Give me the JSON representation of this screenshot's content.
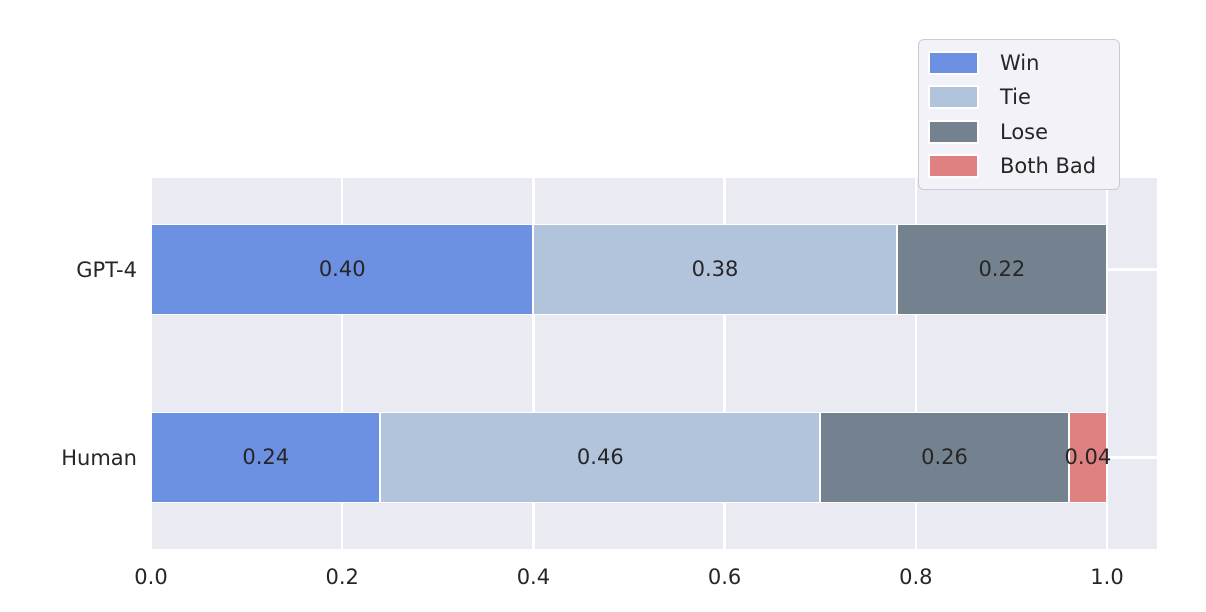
{
  "chart_data": {
    "type": "bar",
    "orientation": "horizontal",
    "stacked": true,
    "categories": [
      "GPT-4",
      "Human"
    ],
    "series": [
      {
        "name": "Win",
        "color": "#6c90e2",
        "values": [
          0.4,
          0.24
        ],
        "labels": [
          "0.40",
          "0.24"
        ]
      },
      {
        "name": "Tie",
        "color": "#b2c3dc",
        "values": [
          0.38,
          0.46
        ],
        "labels": [
          "0.38",
          "0.46"
        ]
      },
      {
        "name": "Lose",
        "color": "#74818e",
        "values": [
          0.22,
          0.26
        ],
        "labels": [
          "0.22",
          "0.26"
        ]
      },
      {
        "name": "Both Bad",
        "color": "#df8181",
        "values": [
          0.0,
          0.04
        ],
        "labels": [
          "",
          "0.04"
        ]
      }
    ],
    "xticks": [
      {
        "value": 0.0,
        "label": "0.0"
      },
      {
        "value": 0.2,
        "label": "0.2"
      },
      {
        "value": 0.4,
        "label": "0.4"
      },
      {
        "value": 0.6,
        "label": "0.6"
      },
      {
        "value": 0.8,
        "label": "0.8"
      },
      {
        "value": 1.0,
        "label": "1.0"
      }
    ],
    "xlim": [
      0,
      1.052
    ],
    "grid": true,
    "legend": {
      "position": "upper right"
    },
    "colors": {
      "figure_bg": "#ffffff",
      "plot_bg": "#eaeaf2",
      "grid": "#ffffff",
      "text": "#262626",
      "legend_bg": "#f2f2f8",
      "legend_border": "#cbcbd4"
    }
  }
}
